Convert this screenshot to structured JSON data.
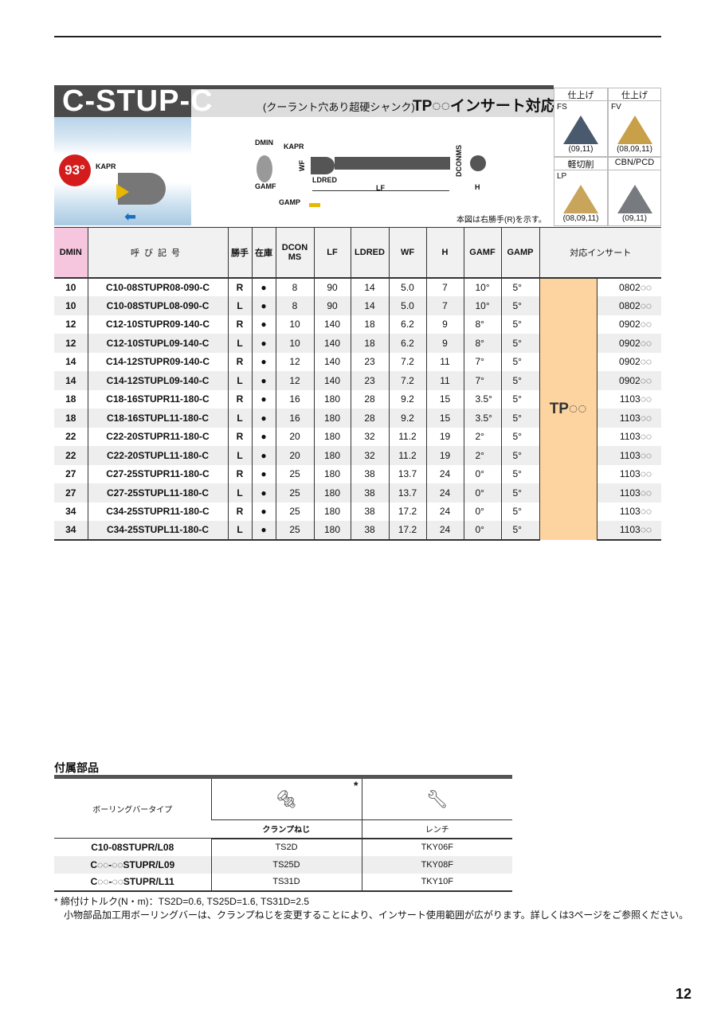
{
  "header": {
    "title": "C-STUP-C",
    "subtitle": "(クーラント穴あり超硬シャンク)",
    "insert_type": "TP◌◌インサート対応",
    "badge": "93°",
    "kapr_label": "KAPR",
    "diagram_note": "本図は右勝手(R)を示す。",
    "diagram_labels": {
      "dmin": "DMIN",
      "kapr": "KAPR",
      "wf": "WF",
      "gamf": "GAMF",
      "ldred": "LDRED",
      "lf": "LF",
      "dconms": "DCONMS",
      "h": "H",
      "gamp": "GAMP"
    }
  },
  "inserts": [
    {
      "heading": "仕上げ",
      "code": "FS",
      "sizes": "(09,11)",
      "color": "#4a5a6e"
    },
    {
      "heading": "仕上げ",
      "code": "FV",
      "sizes": "(08,09,11)",
      "color": "#c9a04a"
    },
    {
      "heading": "軽切削",
      "code": "LP",
      "sizes": "(08,09,11)",
      "color": "#c8a55a"
    },
    {
      "heading": "CBN/PCD",
      "code": "",
      "sizes": "(09,11)",
      "color": "#777b80"
    }
  ],
  "table": {
    "headers": {
      "dmin": "DMIN",
      "name": "呼び記号",
      "hand": "勝手",
      "stock": "在庫",
      "dconms": "DCON MS",
      "lf": "LF",
      "ldred": "LDRED",
      "wf": "WF",
      "h": "H",
      "gamf": "GAMF",
      "gamp": "GAMP",
      "insert": "対応インサート"
    },
    "insert_group": "TP◌◌",
    "rows": [
      [
        "10",
        "C10-08STUPR08-090-C",
        "R",
        "●",
        "8",
        "90",
        "14",
        "5.0",
        "7",
        "10°",
        "5°",
        "0802◌◌"
      ],
      [
        "10",
        "C10-08STUPL08-090-C",
        "L",
        "●",
        "8",
        "90",
        "14",
        "5.0",
        "7",
        "10°",
        "5°",
        "0802◌◌"
      ],
      [
        "12",
        "C12-10STUPR09-140-C",
        "R",
        "●",
        "10",
        "140",
        "18",
        "6.2",
        "9",
        "8°",
        "5°",
        "0902◌◌"
      ],
      [
        "12",
        "C12-10STUPL09-140-C",
        "L",
        "●",
        "10",
        "140",
        "18",
        "6.2",
        "9",
        "8°",
        "5°",
        "0902◌◌"
      ],
      [
        "14",
        "C14-12STUPR09-140-C",
        "R",
        "●",
        "12",
        "140",
        "23",
        "7.2",
        "11",
        "7°",
        "5°",
        "0902◌◌"
      ],
      [
        "14",
        "C14-12STUPL09-140-C",
        "L",
        "●",
        "12",
        "140",
        "23",
        "7.2",
        "11",
        "7°",
        "5°",
        "0902◌◌"
      ],
      [
        "18",
        "C18-16STUPR11-180-C",
        "R",
        "●",
        "16",
        "180",
        "28",
        "9.2",
        "15",
        "3.5°",
        "5°",
        "1103◌◌"
      ],
      [
        "18",
        "C18-16STUPL11-180-C",
        "L",
        "●",
        "16",
        "180",
        "28",
        "9.2",
        "15",
        "3.5°",
        "5°",
        "1103◌◌"
      ],
      [
        "22",
        "C22-20STUPR11-180-C",
        "R",
        "●",
        "20",
        "180",
        "32",
        "11.2",
        "19",
        "2°",
        "5°",
        "1103◌◌"
      ],
      [
        "22",
        "C22-20STUPL11-180-C",
        "L",
        "●",
        "20",
        "180",
        "32",
        "11.2",
        "19",
        "2°",
        "5°",
        "1103◌◌"
      ],
      [
        "27",
        "C27-25STUPR11-180-C",
        "R",
        "●",
        "25",
        "180",
        "38",
        "13.7",
        "24",
        "0°",
        "5°",
        "1103◌◌"
      ],
      [
        "27",
        "C27-25STUPL11-180-C",
        "L",
        "●",
        "25",
        "180",
        "38",
        "13.7",
        "24",
        "0°",
        "5°",
        "1103◌◌"
      ],
      [
        "34",
        "C34-25STUPR11-180-C",
        "R",
        "●",
        "25",
        "180",
        "38",
        "17.2",
        "24",
        "0°",
        "5°",
        "1103◌◌"
      ],
      [
        "34",
        "C34-25STUPL11-180-C",
        "L",
        "●",
        "25",
        "180",
        "38",
        "17.2",
        "24",
        "0°",
        "5°",
        "1103◌◌"
      ]
    ]
  },
  "accessories": {
    "title": "付属部品",
    "col_type": "ボーリングバータイプ",
    "col_screw": "クランプねじ",
    "col_wrench": "レンチ",
    "asterisk": "*",
    "rows": [
      [
        "C10-08STUPR/L08",
        "TS2D",
        "TKY06F"
      ],
      [
        "C◌◌-◌◌STUPR/L09",
        "TS25D",
        "TKY08F"
      ],
      [
        "C◌◌-◌◌STUPR/L11",
        "TS31D",
        "TKY10F"
      ]
    ],
    "note1": "* 締付けトルク(N・m)：TS2D=0.6, TS25D=1.6, TS31D=2.5",
    "note2": "小物部品加工用ボーリングバーは、クランプねじを変更することにより、インサート使用範囲が広がります。詳しくは3ページをご参照ください。"
  },
  "page_number": "12"
}
